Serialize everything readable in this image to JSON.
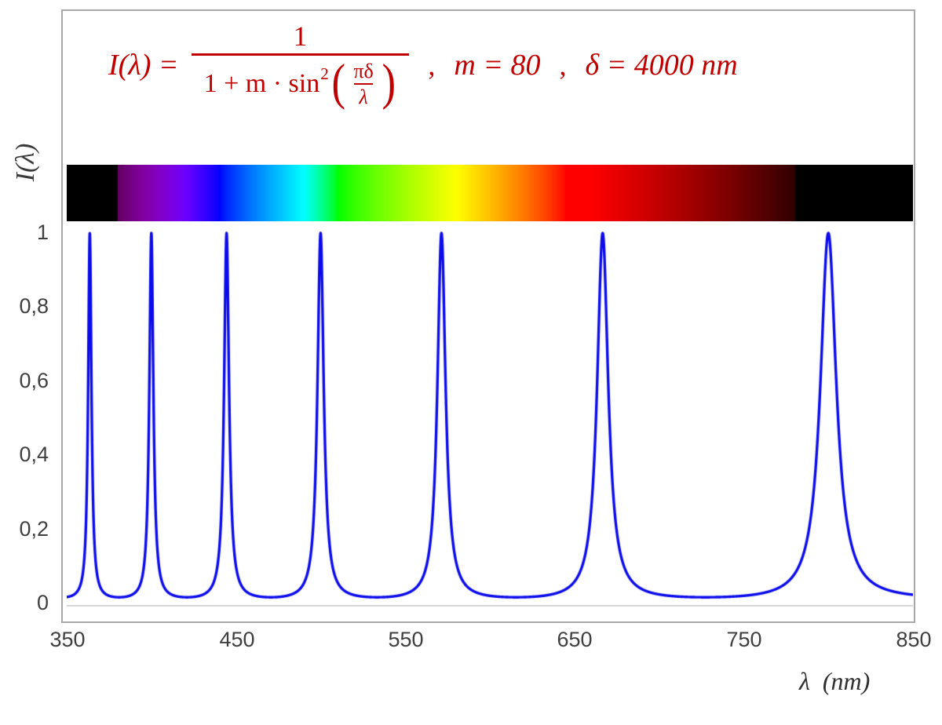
{
  "figure": {
    "background": "#ffffff",
    "border_color": "#a8a8a8"
  },
  "formula": {
    "color": "#c00000",
    "lhs": "I(λ) =",
    "frac_numerator": "1",
    "denom_prefix": "1 + m · sin",
    "denom_sup": "2",
    "inner_numerator": "πδ",
    "inner_denominator": "λ",
    "comma1": ",",
    "param_m": "m = 80",
    "comma2": ",",
    "param_delta": "δ = 4000 nm"
  },
  "axes": {
    "y_label": "I(λ)",
    "x_label": "λ  (nm)",
    "y_tick_labels": [
      "1",
      "0,8",
      "0,6",
      "0,4",
      "0,2",
      "0"
    ],
    "x_tick_labels": [
      "350",
      "450",
      "550",
      "650",
      "750",
      "850"
    ]
  },
  "chart_data": {
    "type": "line",
    "title": "",
    "function_label": "I(λ) = 1 / (1 + m·sin²(πδ/λ))",
    "parameters": {
      "m": 80,
      "delta_nm": 4000
    },
    "xlabel": "λ (nm)",
    "ylabel": "I(λ)",
    "xlim": [
      350,
      850
    ],
    "ylim": [
      0,
      1
    ],
    "x_ticks": [
      350,
      450,
      550,
      650,
      750,
      850
    ],
    "y_ticks": [
      0,
      0.2,
      0.4,
      0.6,
      0.8,
      1
    ],
    "grid": false,
    "legend": false,
    "line_color": "#0b0beb",
    "peaks_nm": [
      363.6,
      400,
      444.4,
      500,
      571.4,
      666.7,
      800
    ],
    "peak_value": 1,
    "spectrum_bar": {
      "range_nm": [
        350,
        850
      ],
      "visible_light_nm": [
        380,
        780
      ]
    }
  }
}
